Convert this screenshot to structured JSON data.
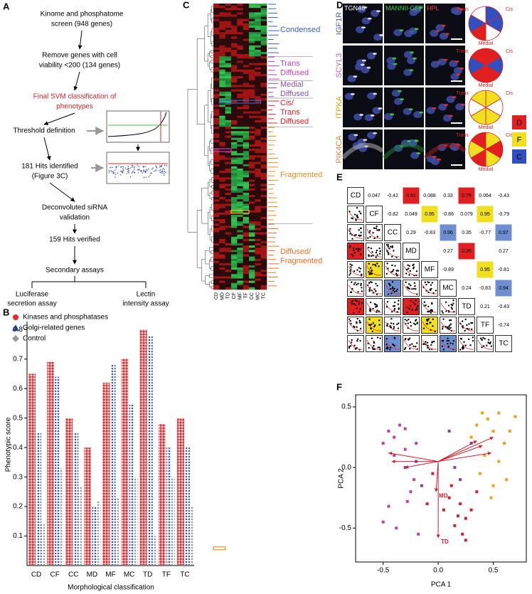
{
  "panel_a": {
    "label": "A",
    "steps": [
      {
        "lines": [
          "Kinome and phosphatome",
          "screen (948 genes)"
        ]
      },
      {
        "lines": [
          "Remove genes with cell",
          "viability <200 (134 genes)"
        ]
      },
      {
        "lines": [
          "Final SVM classification of",
          "phenotypes"
        ],
        "color": "#e0202a"
      },
      {
        "lines": [
          "Threshold definition"
        ]
      },
      {
        "lines": [
          "181 Hits identified",
          "(Figure 3C)"
        ]
      },
      {
        "lines": [
          "Deconvoluted siRNA",
          "validation"
        ]
      },
      {
        "lines": [
          "159 Hits verified"
        ]
      },
      {
        "lines": [
          "Secondary assays"
        ]
      }
    ],
    "branches": [
      [
        "Luciferase",
        "secretion assay"
      ],
      [
        "Lectin",
        "intensity assay"
      ]
    ]
  },
  "panel_b": {
    "label": "B",
    "chart_data": {
      "type": "strip",
      "ylabel": "Phenotypic score",
      "xlabel": "Morphological classification",
      "categories": [
        "CD",
        "CF",
        "CC",
        "MD",
        "MF",
        "MC",
        "TD",
        "TF",
        "TC"
      ],
      "series": [
        {
          "name": "Kinases and phosphatases",
          "color": "#e8282d",
          "marker": "circle",
          "values": [
            0.65,
            0.69,
            0.5,
            0.4,
            0.62,
            0.7,
            0.8,
            0.48,
            0.5
          ]
        },
        {
          "name": "Golgi-related genes",
          "color": "#3a57b8",
          "marker": "triangle",
          "values": [
            0.45,
            0.64,
            0.45,
            0.2,
            0.68,
            0.55,
            0.78,
            0.4,
            0.4
          ]
        },
        {
          "name": "Control",
          "color": "#999999",
          "marker": "diamond",
          "values": [
            0.14,
            0.33,
            0.27,
            0.22,
            0.23,
            0.3,
            0.1,
            0.3,
            0.2
          ]
        }
      ],
      "ylim": [
        0,
        0.82
      ],
      "yticks": [
        0.1,
        0.2,
        0.3,
        0.4,
        0.5,
        0.6,
        0.7,
        0.8
      ]
    }
  },
  "panel_c": {
    "label": "C",
    "columns": [
      "CD",
      "MD",
      "TD",
      "CF",
      "MF",
      "TF",
      "CC",
      "MC",
      "TC"
    ],
    "clusters": [
      {
        "lines": [
          "Condensed"
        ],
        "color": "#3a5fbf"
      },
      {
        "lines": [
          "Trans",
          "Diffused"
        ],
        "color": "#c040c0"
      },
      {
        "lines": [
          "Medial",
          "Diffused"
        ],
        "color": "#8a50b0"
      },
      {
        "lines": [
          "Cis/",
          "Trans",
          "Diffused"
        ],
        "color": "#e02020"
      },
      {
        "lines": [
          "Fragmented"
        ],
        "color": "#e89020"
      },
      {
        "lines": [
          "Diffused/",
          "Fragmented"
        ],
        "color": "#f07020"
      }
    ]
  },
  "panel_d": {
    "label": "D",
    "headers": [
      {
        "text": "TGN46",
        "color": "#ffffff"
      },
      {
        "text": "MANNII-GFP",
        "color": "#40d040"
      },
      {
        "text": "HPL",
        "color": "#ff3030"
      }
    ],
    "rows": [
      {
        "gene": "IGF1R",
        "color": "#4060c0",
        "pie_colors": [
          "#3050c0",
          "#3050c0",
          "#ffffff",
          "#e02020",
          "#3050c0",
          "#ffffff"
        ]
      },
      {
        "gene": "SCYL3",
        "color": "#c060c0",
        "pie_colors": [
          "#e02020",
          "#3050c0",
          "#e02020",
          "#e02020",
          "#3050c0",
          "#e02020"
        ]
      },
      {
        "gene": "ITPKA",
        "color": "#e0a000",
        "pie_colors": [
          "#f0e020",
          "#ffffff",
          "#f0e020",
          "#f0e020",
          "#ffffff",
          "#f0e020"
        ]
      },
      {
        "gene": "PIK4CA",
        "color": "#e08040",
        "pie_colors": [
          "#f0e020",
          "#e02020",
          "#f0e020",
          "#e02020",
          "#f0e020",
          "#e02020"
        ]
      }
    ],
    "pie_labels": {
      "trans": "Trans",
      "cis": "Cis",
      "medial": "Medial"
    },
    "legend": [
      {
        "text": "D",
        "color": "#e02020"
      },
      {
        "text": "F",
        "color": "#f0e020"
      },
      {
        "text": "C",
        "color": "#3050c0"
      }
    ]
  },
  "panel_e": {
    "label": "E",
    "variables": [
      "CD",
      "CF",
      "CC",
      "MD",
      "MF",
      "MC",
      "TD",
      "TF",
      "TC"
    ],
    "upper": [
      [
        0.047,
        -0.42,
        0.61,
        0.088,
        0.33,
        0.79,
        0.064,
        -0.43
      ],
      [
        -0.82,
        0.049,
        0.95,
        -0.86,
        0.079,
        0.95,
        -0.79
      ],
      [
        0.29,
        -0.83,
        0.96,
        0.35,
        -0.77,
        0.97
      ],
      [
        null,
        0.27,
        0.36,
        null,
        0.27
      ],
      [
        -0.89,
        null,
        0.95,
        -0.81
      ],
      [
        0.24,
        -0.83,
        0.94
      ],
      [
        0.21,
        -0.43
      ],
      [
        -0.74
      ]
    ],
    "upper_colors": [
      [
        null,
        null,
        "#e02020",
        null,
        null,
        "#e02020",
        null,
        null
      ],
      [
        null,
        null,
        "#f0e020",
        null,
        null,
        "#f0e020",
        null
      ],
      [
        null,
        null,
        "#6d8fd0",
        null,
        null,
        "#6d8fd0"
      ],
      [
        null,
        null,
        "#e02020",
        null,
        null
      ],
      [
        null,
        null,
        "#f0e020",
        null
      ],
      [
        null,
        null,
        "#6d8fd0"
      ],
      [
        null,
        null
      ],
      [
        null
      ]
    ]
  },
  "panel_f": {
    "label": "F",
    "chart_data": {
      "type": "scatter",
      "xlabel": "PCA 1",
      "ylabel": "PCA 2",
      "xlim": [
        -0.75,
        0.8
      ],
      "ylim": [
        -0.78,
        0.6
      ],
      "xticks": [
        -0.5,
        {
          "value": 0,
          "label": "0.0"
        },
        0.5
      ],
      "yticks": [
        -0.5,
        {
          "value": 0,
          "label": "0.0"
        },
        0.5
      ],
      "series": [
        {
          "color": "#c040a0",
          "x": [
            -0.45,
            -0.5,
            -0.4,
            -0.35,
            -0.3,
            -0.2,
            -0.25,
            -0.45,
            -0.38,
            -0.28,
            -0.5,
            -0.22,
            -0.4,
            -0.3,
            -0.18
          ],
          "y": [
            0.3,
            0.2,
            0.25,
            0.35,
            0.15,
            0.2,
            -0.2,
            -0.32,
            -0.5,
            -0.28,
            -0.45,
            -0.1,
            0.1,
            0.32,
            -0.55
          ]
        },
        {
          "color": "#d02030",
          "x": [
            0.05,
            0.1,
            0.2,
            0.25,
            0.15,
            0.3,
            0.22,
            0.12,
            -0.05,
            -0.1,
            0.35,
            0.25,
            0.18
          ],
          "y": [
            -0.35,
            -0.25,
            -0.3,
            -0.42,
            -0.48,
            -0.35,
            -0.55,
            -0.15,
            -0.05,
            -0.3,
            -0.2,
            -0.6,
            -0.4
          ]
        },
        {
          "color": "#f0a020",
          "x": [
            0.35,
            0.45,
            0.5,
            0.55,
            0.6,
            0.42,
            0.38,
            0.65,
            0.5,
            0.3,
            0.4,
            0.55,
            0.7,
            0.62,
            0.48
          ],
          "y": [
            0.35,
            0.4,
            0.3,
            0.45,
            0.2,
            0.1,
            -0.05,
            0.3,
            -0.15,
            0.25,
            0.45,
            0.05,
            0.42,
            -0.1,
            -0.25
          ]
        },
        {
          "color": "#8040a0",
          "x": [
            -0.3,
            -0.15,
            0.15,
            0.2,
            -0.2,
            0.3,
            0.1
          ],
          "y": [
            0.0,
            -0.15,
            0.0,
            -0.1,
            0.05,
            0.2,
            0.3
          ]
        }
      ],
      "loadings": {
        "labels": [
          "MD",
          "TD",
          null,
          null,
          null,
          null,
          null,
          null,
          null
        ],
        "x": [
          -0.02,
          0.0,
          -0.45,
          -0.3,
          -0.42,
          0.4,
          0.48,
          0.35,
          0.5
        ],
        "y": [
          -0.2,
          -0.58,
          0.12,
          0.0,
          0.05,
          0.18,
          0.12,
          0.22,
          0.25
        ],
        "color": "#d02030"
      }
    }
  }
}
